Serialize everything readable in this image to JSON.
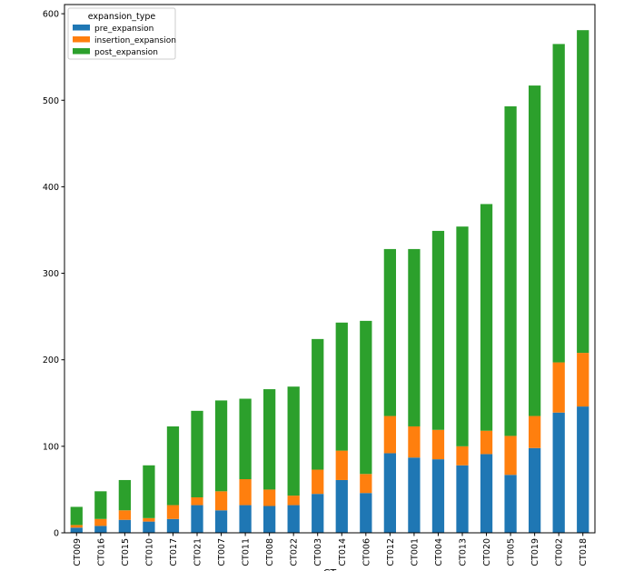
{
  "chart_data": {
    "type": "bar",
    "stacked": true,
    "title": "",
    "xlabel": "CT",
    "ylabel": "",
    "ylim": [
      0,
      610
    ],
    "yticks": [
      0,
      100,
      200,
      300,
      400,
      500,
      600
    ],
    "grid": false,
    "legend": {
      "title": "expansion_type",
      "placement": "top-left"
    },
    "categories": [
      "CT009",
      "CT016",
      "CT015",
      "CT010",
      "CT017",
      "CT021",
      "CT007",
      "CT011",
      "CT008",
      "CT022",
      "CT003",
      "CT014",
      "CT006",
      "CT012",
      "CT001",
      "CT004",
      "CT013",
      "CT020",
      "CT005",
      "CT019",
      "CT002",
      "CT018"
    ],
    "series": [
      {
        "name": "pre_expansion",
        "color": "#1f77b4",
        "values": [
          6,
          8,
          15,
          13,
          16,
          32,
          26,
          32,
          31,
          32,
          45,
          61,
          46,
          92,
          87,
          85,
          78,
          91,
          67,
          98,
          139,
          146
        ]
      },
      {
        "name": "insertion_expansion",
        "color": "#ff7f0e",
        "values": [
          3,
          8,
          11,
          4,
          16,
          9,
          22,
          30,
          19,
          11,
          28,
          34,
          22,
          43,
          36,
          34,
          22,
          27,
          45,
          37,
          58,
          62
        ]
      },
      {
        "name": "post_expansion",
        "color": "#2ca02c",
        "values": [
          21,
          32,
          35,
          61,
          91,
          100,
          105,
          93,
          116,
          126,
          151,
          148,
          177,
          193,
          205,
          230,
          254,
          262,
          381,
          382,
          368,
          373
        ]
      }
    ]
  }
}
